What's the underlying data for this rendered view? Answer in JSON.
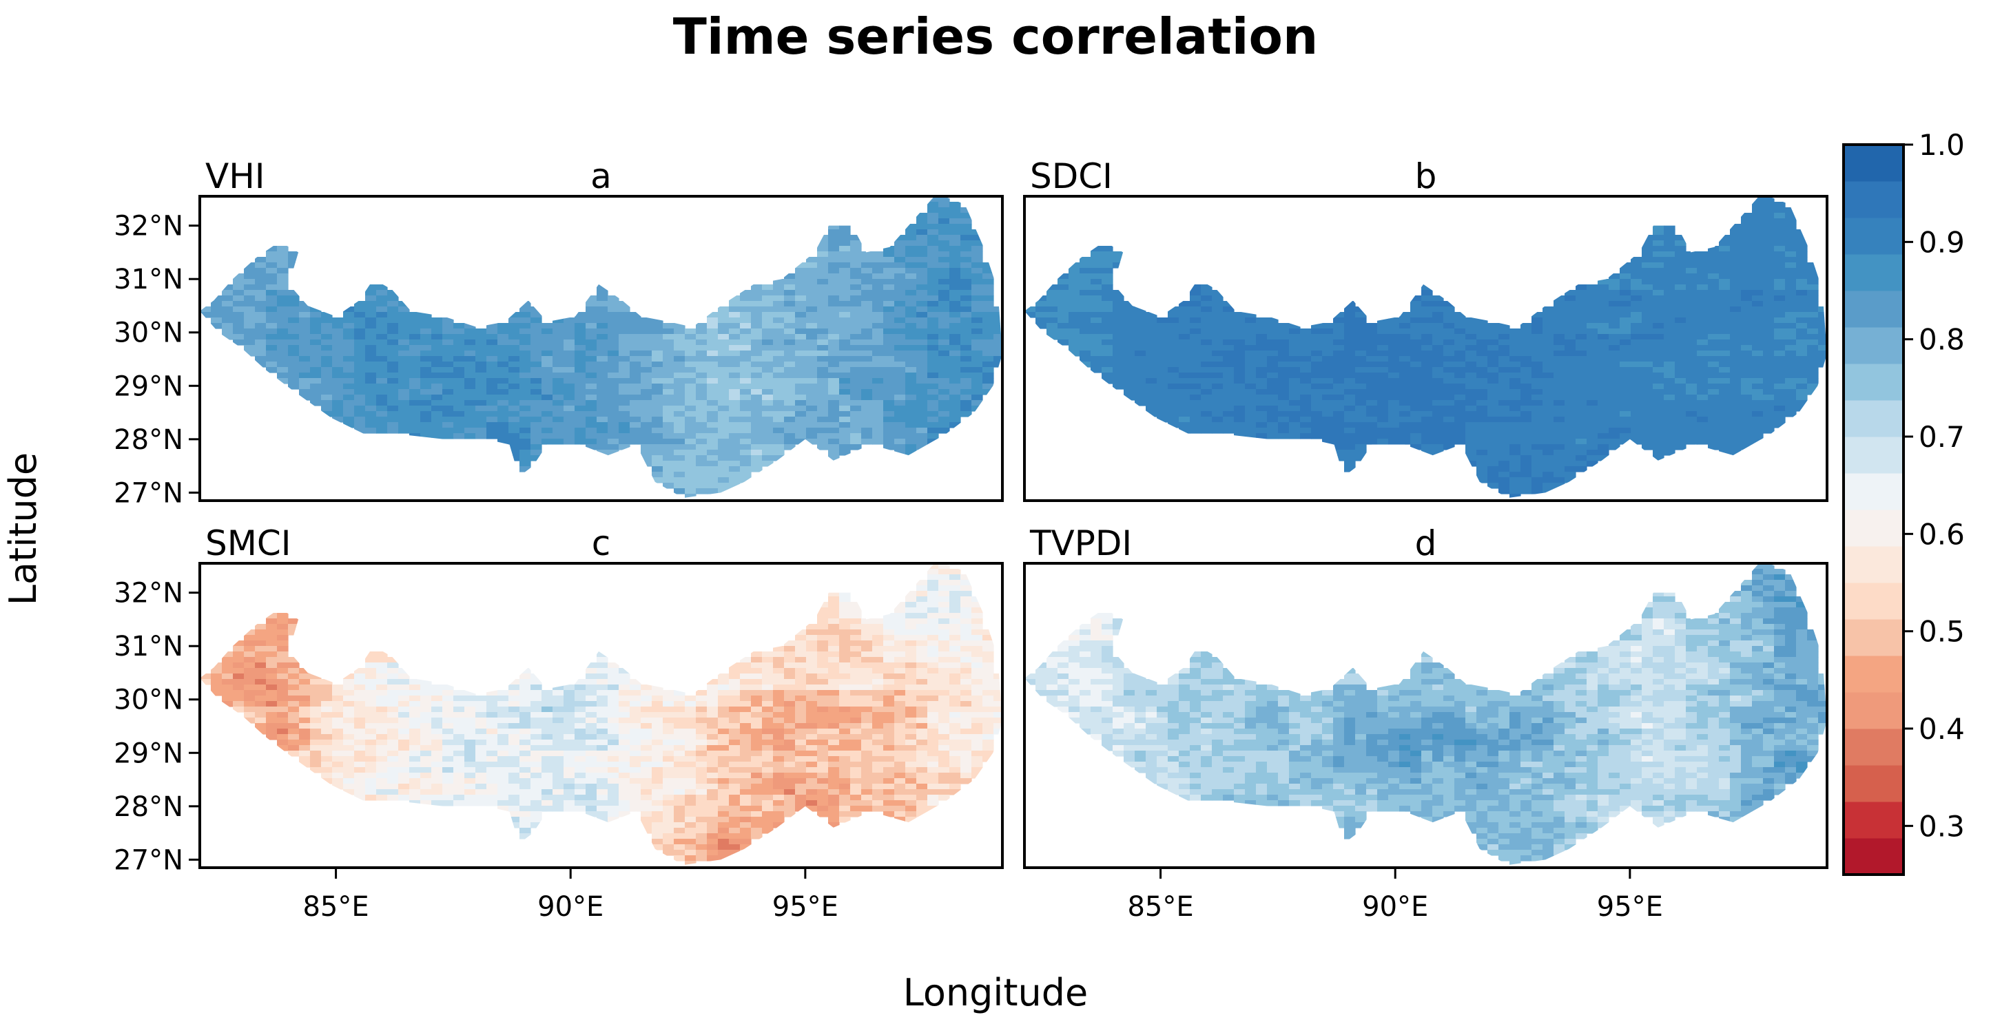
{
  "title": "Time series correlation",
  "xlabel": "Longitude",
  "ylabel": "Latitude",
  "x_ticks": [
    "85°E",
    "90°E",
    "95°E"
  ],
  "x_tick_values": [
    85,
    90,
    95
  ],
  "y_ticks": [
    "27°N",
    "28°N",
    "29°N",
    "30°N",
    "31°N",
    "32°N"
  ],
  "y_tick_values": [
    27,
    28,
    29,
    30,
    31,
    32
  ],
  "extent": {
    "lon": [
      82.1,
      99.2
    ],
    "lat": [
      26.85,
      32.55
    ]
  },
  "panels": [
    {
      "id": "a",
      "index_name": "VHI",
      "letter": "a",
      "mean": 0.83,
      "spread": 0.05
    },
    {
      "id": "b",
      "index_name": "SDCI",
      "letter": "b",
      "mean": 0.9,
      "spread": 0.03
    },
    {
      "id": "c",
      "index_name": "SMCI",
      "letter": "c",
      "mean": 0.6,
      "spread": 0.08
    },
    {
      "id": "d",
      "index_name": "TVPDI",
      "letter": "d",
      "mean": 0.75,
      "spread": 0.06
    }
  ],
  "colorbar": {
    "range": [
      0.25,
      1.0
    ],
    "tick_labels": [
      "0.3",
      "0.4",
      "0.5",
      "0.6",
      "0.7",
      "0.8",
      "0.9",
      "1.0"
    ],
    "tick_values": [
      0.3,
      0.4,
      0.5,
      0.6,
      0.7,
      0.8,
      0.9,
      1.0
    ],
    "colors": [
      "#b2182b",
      "#c83136",
      "#d6604d",
      "#e07b62",
      "#ef9a7b",
      "#f4a582",
      "#f7c3a8",
      "#fddbc7",
      "#fbe8dc",
      "#f7f1ee",
      "#eef3f7",
      "#d1e5f0",
      "#b8d8ea",
      "#92c5de",
      "#76b0d4",
      "#5a9cc9",
      "#4393c3",
      "#3682bd",
      "#2f77b9",
      "#2166ac"
    ]
  },
  "chart_data": {
    "type": "heatmap",
    "title": "Time series correlation",
    "xlabel": "Longitude",
    "ylabel": "Latitude",
    "xlim": [
      82.1,
      99.2
    ],
    "ylim": [
      26.85,
      32.55
    ],
    "color_range": [
      0.25,
      1.0
    ],
    "series": [
      {
        "name": "VHI",
        "panel": "a",
        "approx_mean_correlation": 0.83
      },
      {
        "name": "SDCI",
        "panel": "b",
        "approx_mean_correlation": 0.9
      },
      {
        "name": "SMCI",
        "panel": "c",
        "approx_mean_correlation": 0.6
      },
      {
        "name": "TVPDI",
        "panel": "d",
        "approx_mean_correlation": 0.75
      }
    ],
    "region_outline": [
      [
        82.1,
        30.4
      ],
      [
        82.4,
        30.6
      ],
      [
        82.8,
        31.0
      ],
      [
        83.3,
        31.4
      ],
      [
        83.8,
        31.7
      ],
      [
        84.2,
        31.5
      ],
      [
        84.0,
        30.9
      ],
      [
        84.4,
        30.5
      ],
      [
        85.0,
        30.3
      ],
      [
        85.5,
        30.6
      ],
      [
        85.8,
        31.0
      ],
      [
        86.2,
        30.8
      ],
      [
        86.6,
        30.4
      ],
      [
        87.3,
        30.3
      ],
      [
        88.0,
        30.1
      ],
      [
        88.6,
        30.2
      ],
      [
        89.1,
        30.6
      ],
      [
        89.5,
        30.2
      ],
      [
        90.1,
        30.3
      ],
      [
        90.6,
        30.9
      ],
      [
        91.1,
        30.6
      ],
      [
        91.5,
        30.3
      ],
      [
        92.1,
        30.2
      ],
      [
        92.6,
        30.1
      ],
      [
        93.2,
        30.5
      ],
      [
        93.9,
        30.9
      ],
      [
        94.5,
        31.0
      ],
      [
        95.2,
        31.5
      ],
      [
        95.5,
        32.0
      ],
      [
        96.0,
        32.0
      ],
      [
        96.3,
        31.5
      ],
      [
        96.8,
        31.6
      ],
      [
        97.3,
        32.1
      ],
      [
        97.8,
        32.6
      ],
      [
        98.4,
        32.4
      ],
      [
        98.8,
        31.6
      ],
      [
        99.1,
        30.8
      ],
      [
        99.2,
        29.6
      ],
      [
        99.0,
        29.0
      ],
      [
        98.6,
        28.5
      ],
      [
        98.0,
        28.1
      ],
      [
        97.2,
        27.7
      ],
      [
        96.4,
        27.9
      ],
      [
        95.6,
        27.6
      ],
      [
        95.0,
        28.0
      ],
      [
        94.4,
        27.6
      ],
      [
        93.7,
        27.2
      ],
      [
        93.2,
        27.0
      ],
      [
        92.4,
        26.9
      ],
      [
        91.8,
        27.2
      ],
      [
        91.4,
        27.9
      ],
      [
        90.8,
        27.7
      ],
      [
        90.2,
        27.9
      ],
      [
        89.5,
        27.9
      ],
      [
        89.2,
        27.5
      ],
      [
        88.9,
        27.3
      ],
      [
        88.7,
        27.9
      ],
      [
        88.2,
        28.0
      ],
      [
        87.3,
        28.0
      ],
      [
        86.3,
        28.1
      ],
      [
        85.6,
        28.1
      ],
      [
        84.9,
        28.4
      ],
      [
        84.1,
        28.9
      ],
      [
        83.5,
        29.3
      ],
      [
        83.0,
        29.7
      ],
      [
        82.5,
        30.0
      ]
    ]
  }
}
